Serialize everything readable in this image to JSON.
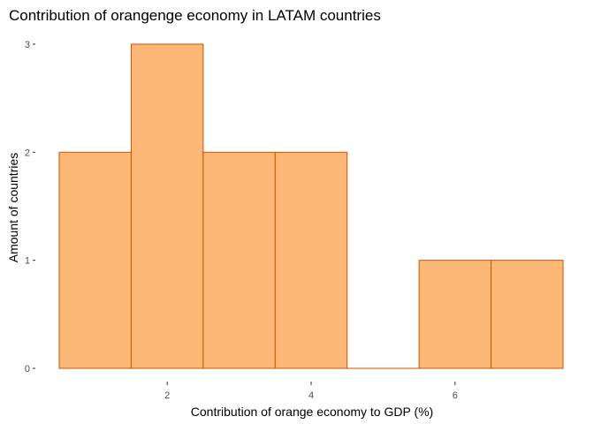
{
  "chart_data": {
    "type": "bar",
    "subtype": "histogram",
    "title": "Contribution of orangenge economy in LATAM countries",
    "xlabel": "Contribution of orange economy to GDP (%)",
    "ylabel": "Amount of countries",
    "bins": [
      {
        "x0": 0.5,
        "x1": 1.5,
        "count": 2
      },
      {
        "x0": 1.5,
        "x1": 2.5,
        "count": 3
      },
      {
        "x0": 2.5,
        "x1": 3.5,
        "count": 2
      },
      {
        "x0": 3.5,
        "x1": 4.5,
        "count": 2
      },
      {
        "x0": 4.5,
        "x1": 5.5,
        "count": 0
      },
      {
        "x0": 5.5,
        "x1": 6.5,
        "count": 1
      },
      {
        "x0": 6.5,
        "x1": 7.5,
        "count": 1
      }
    ],
    "xlim": [
      0.5,
      7.5
    ],
    "ylim": [
      0,
      3
    ],
    "x_ticks": [
      2,
      4,
      6
    ],
    "y_ticks": [
      0,
      1,
      2,
      3
    ],
    "grid": false,
    "colors": {
      "fill": "#fdb877",
      "outline": "#cc5500"
    }
  }
}
